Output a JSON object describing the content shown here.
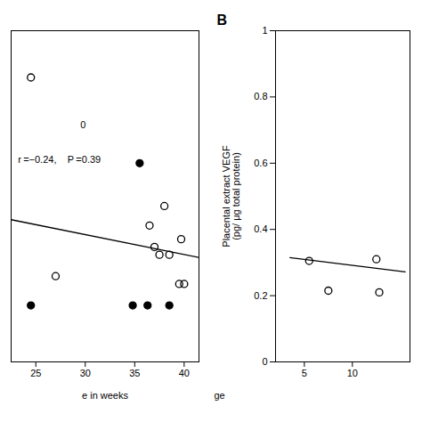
{
  "chart_data": [
    {
      "type": "scatter",
      "xlabel": "e in weeks",
      "xlim": [
        22.5,
        41.5
      ],
      "ylim": [
        0,
        0.85
      ],
      "xticks": [
        25,
        30,
        35,
        40
      ],
      "tick_labels": "x",
      "grid": false,
      "series": [
        {
          "type": "scatter",
          "marker": "open_circle",
          "color": "#000000",
          "x": [
            24.5,
            27.0,
            36.5,
            37.0,
            37.5,
            38.0,
            38.5,
            39.5,
            39.7,
            40.0
          ],
          "values": [
            0.73,
            0.22,
            0.35,
            0.295,
            0.275,
            0.4,
            0.275,
            0.2,
            0.315,
            0.2
          ]
        },
        {
          "type": "scatter",
          "marker": "filled_circle",
          "color": "#000000",
          "x": [
            24.5,
            34.8,
            35.5,
            36.3,
            38.5
          ],
          "values": [
            0.145,
            0.145,
            0.51,
            0.145,
            0.145
          ]
        },
        {
          "type": "line",
          "color": "#000000",
          "x": [
            22.5,
            41.5
          ],
          "values": [
            0.365,
            0.268
          ]
        }
      ],
      "annotations": [
        {
          "text": "0",
          "x": 29.5,
          "y": 0.6
        },
        {
          "text": "r =−0.24, ",
          "x": 23.2,
          "y": 0.51
        },
        {
          "text": "P =0.39",
          "x": 28.2,
          "y": 0.51
        }
      ]
    },
    {
      "type": "scatter",
      "title": "B",
      "xlabel": "ge",
      "ylabel": "Placental extract VEGF\n(pg/ μg total protein)",
      "xlim": [
        2,
        16
      ],
      "ylim": [
        0,
        1.0
      ],
      "xticks": [
        5,
        10
      ],
      "yticks": [
        0,
        0.2,
        0.4,
        0.6,
        0.8,
        1
      ],
      "grid": false,
      "series": [
        {
          "type": "scatter",
          "marker": "open_circle",
          "color": "#000000",
          "x": [
            5.5,
            7.5,
            12.5,
            12.8
          ],
          "values": [
            0.305,
            0.215,
            0.31,
            0.21
          ]
        },
        {
          "type": "line",
          "color": "#000000",
          "x": [
            3.5,
            15.5
          ],
          "values": [
            0.315,
            0.272
          ]
        }
      ]
    }
  ]
}
